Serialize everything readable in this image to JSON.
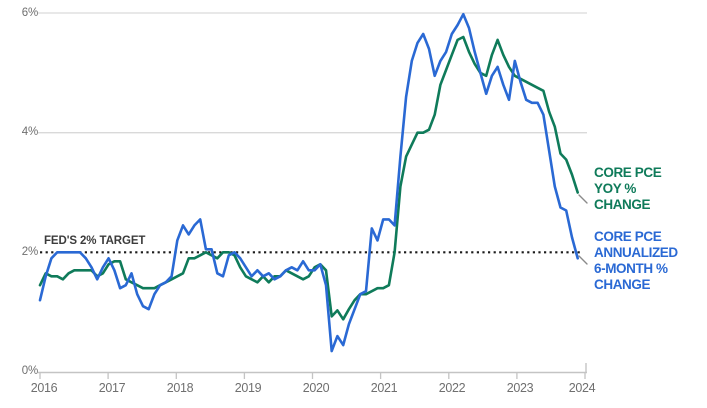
{
  "annotation": {
    "label": "FED'S 2% TARGET",
    "value_pct": 2
  },
  "legend": [
    {
      "id": "yoy",
      "label": "CORE PCE\nYOY %\nCHANGE",
      "color": "#0f7b5a"
    },
    {
      "id": "ann6m",
      "label": "CORE PCE\nANNUALIZED\n6-MONTH %\nCHANGE",
      "color": "#2a69d4"
    }
  ],
  "chart_data": {
    "type": "line",
    "title": "",
    "xlabel": "",
    "ylabel": "",
    "x_unit": "month",
    "x_start": "2016-01",
    "x_end": "2023-11",
    "x_tick_labels": [
      "2016",
      "2017",
      "2018",
      "2019",
      "2020",
      "2021",
      "2022",
      "2023",
      "2024"
    ],
    "y_tick_labels": [
      "0%",
      "2%",
      "4%",
      "6%"
    ],
    "ylim": [
      0,
      6
    ],
    "grid": "horizontal",
    "legend_position": "right",
    "target_line": {
      "label": "FED'S 2% TARGET",
      "y": 2,
      "style": "dotted",
      "color": "#1c1c1c"
    },
    "series": [
      {
        "name": "CORE PCE YOY % CHANGE",
        "color": "#0f7b5a",
        "values": [
          1.45,
          1.65,
          1.6,
          1.6,
          1.55,
          1.65,
          1.7,
          1.7,
          1.7,
          1.7,
          1.6,
          1.65,
          1.8,
          1.85,
          1.85,
          1.55,
          1.5,
          1.45,
          1.4,
          1.4,
          1.4,
          1.45,
          1.5,
          1.55,
          1.6,
          1.65,
          1.9,
          1.9,
          1.95,
          2.0,
          1.95,
          1.9,
          2.0,
          2.0,
          1.95,
          1.75,
          1.6,
          1.55,
          1.5,
          1.6,
          1.5,
          1.6,
          1.6,
          1.7,
          1.65,
          1.6,
          1.55,
          1.6,
          1.75,
          1.8,
          1.7,
          0.93,
          1.03,
          0.88,
          1.05,
          1.2,
          1.3,
          1.3,
          1.35,
          1.4,
          1.4,
          1.45,
          2.0,
          3.1,
          3.6,
          3.8,
          4.0,
          4.0,
          4.05,
          4.3,
          4.8,
          5.05,
          5.3,
          5.55,
          5.6,
          5.35,
          5.15,
          5.0,
          4.95,
          5.3,
          5.55,
          5.3,
          5.1,
          4.95,
          4.9,
          4.85,
          4.8,
          4.75,
          4.7,
          4.35,
          4.1,
          3.65,
          3.55,
          3.3,
          3.0
        ]
      },
      {
        "name": "CORE PCE ANNUALIZED 6-MONTH % CHANGE",
        "color": "#2a69d4",
        "values": [
          1.2,
          1.6,
          1.9,
          2.0,
          2.0,
          2.0,
          2.0,
          2.0,
          1.9,
          1.75,
          1.55,
          1.75,
          1.9,
          1.7,
          1.4,
          1.45,
          1.65,
          1.3,
          1.1,
          1.05,
          1.3,
          1.45,
          1.5,
          1.6,
          2.2,
          2.45,
          2.3,
          2.45,
          2.55,
          2.05,
          2.05,
          1.65,
          1.6,
          1.95,
          2.0,
          1.9,
          1.75,
          1.6,
          1.7,
          1.6,
          1.65,
          1.55,
          1.6,
          1.7,
          1.75,
          1.7,
          1.85,
          1.7,
          1.7,
          1.8,
          1.45,
          0.35,
          0.6,
          0.45,
          0.8,
          1.05,
          1.3,
          1.35,
          2.4,
          2.2,
          2.55,
          2.55,
          2.45,
          3.6,
          4.6,
          5.2,
          5.5,
          5.65,
          5.4,
          4.95,
          5.2,
          5.35,
          5.65,
          5.8,
          5.98,
          5.75,
          5.35,
          5.0,
          4.65,
          4.95,
          5.1,
          4.8,
          4.55,
          5.2,
          4.85,
          4.55,
          4.5,
          4.5,
          4.3,
          3.7,
          3.1,
          2.75,
          2.7,
          2.25,
          1.9
        ]
      }
    ]
  }
}
